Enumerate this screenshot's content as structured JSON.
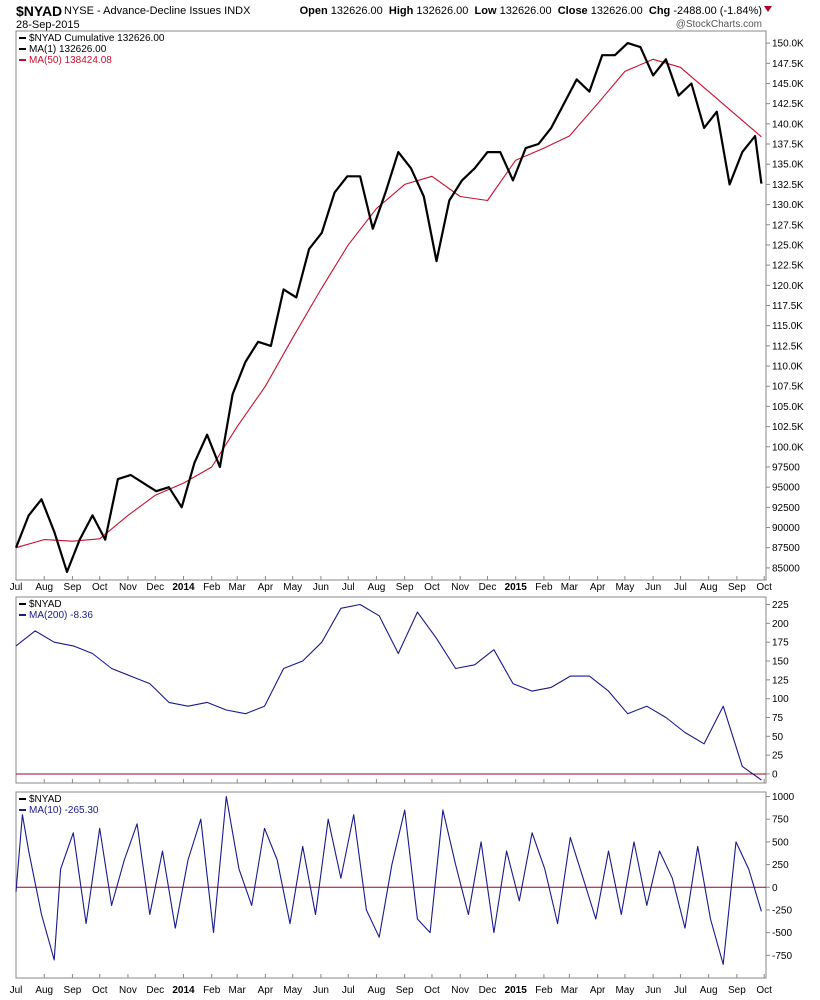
{
  "header": {
    "symbol": "$NYAD",
    "name": "NYSE - Advance-Decline Issues INDX",
    "date": "28-Sep-2015",
    "open_label": "Open",
    "open": "132626.00",
    "high_label": "High",
    "high": "132626.00",
    "low_label": "Low",
    "low": "132626.00",
    "close_label": "Close",
    "close": "132626.00",
    "chg_label": "Chg",
    "chg": "-2488.00 (-1.84%)",
    "brand": "@StockCharts.com",
    "chg_color": "#b0002a"
  },
  "chart_data": [
    {
      "type": "line",
      "panel": "main",
      "ylim": [
        83500,
        151500
      ],
      "yticks": [
        85000,
        87500,
        90000,
        92500,
        95000,
        97500,
        100000,
        102500,
        105000,
        107500,
        110000,
        112500,
        115000,
        117500,
        120000,
        122500,
        125000,
        127500,
        130000,
        132500,
        135000,
        137500,
        140000,
        142500,
        145000,
        147500,
        150000
      ],
      "ytick_labels": [
        "85000",
        "87500",
        "90000",
        "92500",
        "95000",
        "97500",
        "100.0K",
        "102.5K",
        "105.0K",
        "107.5K",
        "110.0K",
        "112.5K",
        "115.0K",
        "117.5K",
        "120.0K",
        "122.5K",
        "125.0K",
        "127.5K",
        "130.0K",
        "132.5K",
        "135.0K",
        "137.5K",
        "140.0K",
        "142.5K",
        "145.0K",
        "147.5K",
        "150.0K"
      ],
      "grid": false,
      "legend_position": "top-left",
      "legend": [
        {
          "label": "$NYAD Cumulative 132626.00",
          "color": "#000000"
        },
        {
          "label": "MA(1) 132626.00",
          "color": "#000000"
        },
        {
          "label": "MA(50) 138424.08",
          "color": "#c8102e"
        }
      ],
      "series": [
        {
          "name": "$NYAD Cumulative",
          "color": "#000000",
          "x": [
            "2013-07-01",
            "2013-07-15",
            "2013-07-29",
            "2013-08-12",
            "2013-08-26",
            "2013-09-09",
            "2013-09-23",
            "2013-10-07",
            "2013-10-21",
            "2013-11-04",
            "2013-11-18",
            "2013-12-02",
            "2013-12-16",
            "2013-12-30",
            "2014-01-13",
            "2014-01-27",
            "2014-02-10",
            "2014-02-24",
            "2014-03-10",
            "2014-03-24",
            "2014-04-07",
            "2014-04-21",
            "2014-05-05",
            "2014-05-19",
            "2014-06-02",
            "2014-06-16",
            "2014-06-30",
            "2014-07-14",
            "2014-07-28",
            "2014-08-11",
            "2014-08-25",
            "2014-09-08",
            "2014-09-22",
            "2014-10-06",
            "2014-10-20",
            "2014-11-03",
            "2014-11-17",
            "2014-12-01",
            "2014-12-15",
            "2014-12-29",
            "2015-01-12",
            "2015-01-26",
            "2015-02-09",
            "2015-02-23",
            "2015-03-09",
            "2015-03-23",
            "2015-04-06",
            "2015-04-20",
            "2015-05-04",
            "2015-05-18",
            "2015-06-01",
            "2015-06-15",
            "2015-06-29",
            "2015-07-13",
            "2015-07-27",
            "2015-08-10",
            "2015-08-24",
            "2015-09-07",
            "2015-09-21",
            "2015-09-28"
          ],
          "y": [
            87500,
            91500,
            93500,
            89500,
            84500,
            88500,
            91500,
            88500,
            96000,
            96500,
            95500,
            94500,
            95000,
            92500,
            98000,
            101500,
            97500,
            106500,
            110500,
            113000,
            112500,
            119500,
            118500,
            124500,
            126500,
            131500,
            133500,
            133500,
            127000,
            131500,
            136500,
            134500,
            131000,
            123000,
            130500,
            133000,
            134500,
            136500,
            136500,
            133000,
            137000,
            137500,
            139500,
            142500,
            145500,
            144000,
            148500,
            148500,
            150000,
            149500,
            146000,
            148000,
            143500,
            145000,
            139500,
            141500,
            132500,
            136500,
            138500,
            132600
          ]
        },
        {
          "name": "MA(50)",
          "color": "#c8102e",
          "x": [
            "2013-07-01",
            "2013-08-01",
            "2013-09-01",
            "2013-10-01",
            "2013-11-01",
            "2013-12-01",
            "2014-01-01",
            "2014-02-01",
            "2014-03-01",
            "2014-04-01",
            "2014-05-01",
            "2014-06-01",
            "2014-07-01",
            "2014-08-01",
            "2014-09-01",
            "2014-10-01",
            "2014-11-01",
            "2014-12-01",
            "2015-01-01",
            "2015-02-01",
            "2015-03-01",
            "2015-04-01",
            "2015-05-01",
            "2015-06-01",
            "2015-07-01",
            "2015-08-01",
            "2015-09-01",
            "2015-09-28"
          ],
          "y": [
            87500,
            88500,
            88300,
            88600,
            91500,
            94000,
            95500,
            97500,
            102500,
            107500,
            113500,
            119500,
            125000,
            129500,
            132500,
            133500,
            131000,
            130500,
            135500,
            137000,
            138500,
            142500,
            146500,
            148000,
            147000,
            144000,
            141000,
            138400
          ]
        }
      ],
      "x_ticks": [
        "Jul",
        "Aug",
        "Sep",
        "Oct",
        "Nov",
        "Dec",
        "2014",
        "Feb",
        "Mar",
        "Apr",
        "May",
        "Jun",
        "Jul",
        "Aug",
        "Sep",
        "Oct",
        "Nov",
        "Dec",
        "2015",
        "Feb",
        "Mar",
        "Apr",
        "May",
        "Jun",
        "Jul",
        "Aug",
        "Sep",
        "Oct"
      ],
      "x_tick_dates": [
        "2013-07-01",
        "2013-08-01",
        "2013-09-01",
        "2013-10-01",
        "2013-11-01",
        "2013-12-01",
        "2014-01-01",
        "2014-02-01",
        "2014-03-01",
        "2014-04-01",
        "2014-05-01",
        "2014-06-01",
        "2014-07-01",
        "2014-08-01",
        "2014-09-01",
        "2014-10-01",
        "2014-11-01",
        "2014-12-01",
        "2015-01-01",
        "2015-02-01",
        "2015-03-01",
        "2015-04-01",
        "2015-05-01",
        "2015-06-01",
        "2015-07-01",
        "2015-08-01",
        "2015-09-01",
        "2015-10-01"
      ]
    },
    {
      "type": "line",
      "panel": "ma200",
      "ylim": [
        -12,
        235
      ],
      "yticks": [
        0,
        25,
        50,
        75,
        100,
        125,
        150,
        175,
        200,
        225
      ],
      "ytick_labels": [
        "0",
        "25",
        "50",
        "75",
        "100",
        "125",
        "150",
        "175",
        "200",
        "225"
      ],
      "reference_line": 0,
      "reference_color": "#a0002a",
      "legend": [
        {
          "label": "$NYAD",
          "color": "#000000"
        },
        {
          "label": "MA(200) -8.36",
          "color": "#1a1a8c"
        }
      ],
      "series": [
        {
          "name": "MA(200)",
          "color": "#1a1a8c",
          "x": [
            "2013-07-01",
            "2013-07-22",
            "2013-08-12",
            "2013-09-02",
            "2013-09-23",
            "2013-10-14",
            "2013-11-04",
            "2013-11-25",
            "2013-12-16",
            "2014-01-06",
            "2014-01-27",
            "2014-02-17",
            "2014-03-10",
            "2014-03-31",
            "2014-04-21",
            "2014-05-12",
            "2014-06-02",
            "2014-06-23",
            "2014-07-14",
            "2014-08-04",
            "2014-08-25",
            "2014-09-15",
            "2014-10-06",
            "2014-10-27",
            "2014-11-17",
            "2014-12-08",
            "2014-12-29",
            "2015-01-19",
            "2015-02-09",
            "2015-03-02",
            "2015-03-23",
            "2015-04-13",
            "2015-05-04",
            "2015-05-25",
            "2015-06-15",
            "2015-07-06",
            "2015-07-27",
            "2015-08-17",
            "2015-09-07",
            "2015-09-28"
          ],
          "y": [
            170,
            190,
            175,
            170,
            160,
            140,
            130,
            120,
            95,
            90,
            95,
            85,
            80,
            90,
            140,
            150,
            175,
            220,
            225,
            210,
            160,
            215,
            180,
            140,
            145,
            165,
            120,
            110,
            115,
            130,
            130,
            110,
            80,
            90,
            75,
            55,
            40,
            90,
            10,
            -8
          ]
        }
      ],
      "x_ticks": [
        "Jul",
        "Aug",
        "Sep",
        "Oct",
        "Nov",
        "Dec",
        "2014",
        "Feb",
        "Mar",
        "Apr",
        "May",
        "Jun",
        "Jul",
        "Aug",
        "Sep",
        "Oct",
        "Nov",
        "Dec",
        "2015",
        "Feb",
        "Mar",
        "Apr",
        "May",
        "Jun",
        "Jul",
        "Aug",
        "Sep",
        "Oct"
      ]
    },
    {
      "type": "line",
      "panel": "ma10",
      "ylim": [
        -1000,
        1050
      ],
      "yticks": [
        -750,
        -500,
        -250,
        0,
        250,
        500,
        750,
        1000
      ],
      "ytick_labels": [
        "-750",
        "-500",
        "-250",
        "0",
        "250",
        "500",
        "750",
        "1000"
      ],
      "reference_line": 0,
      "reference_color": "#a0002a",
      "legend": [
        {
          "label": "$NYAD",
          "color": "#000000"
        },
        {
          "label": "MA(10) -265.30",
          "color": "#1a1a8c"
        }
      ],
      "series": [
        {
          "name": "MA(10)",
          "color": "#1a1a8c",
          "x": [
            "2013-07-01",
            "2013-07-08",
            "2013-07-15",
            "2013-07-29",
            "2013-08-12",
            "2013-08-19",
            "2013-09-02",
            "2013-09-16",
            "2013-10-01",
            "2013-10-14",
            "2013-10-28",
            "2013-11-11",
            "2013-11-25",
            "2013-12-09",
            "2013-12-23",
            "2014-01-06",
            "2014-01-20",
            "2014-02-03",
            "2014-02-17",
            "2014-03-03",
            "2014-03-17",
            "2014-03-31",
            "2014-04-14",
            "2014-04-28",
            "2014-05-12",
            "2014-05-26",
            "2014-06-09",
            "2014-06-23",
            "2014-07-07",
            "2014-07-21",
            "2014-08-04",
            "2014-08-18",
            "2014-09-01",
            "2014-09-15",
            "2014-09-29",
            "2014-10-13",
            "2014-10-27",
            "2014-11-10",
            "2014-11-24",
            "2014-12-08",
            "2014-12-22",
            "2015-01-05",
            "2015-01-19",
            "2015-02-02",
            "2015-02-16",
            "2015-03-02",
            "2015-03-16",
            "2015-03-30",
            "2015-04-13",
            "2015-04-27",
            "2015-05-11",
            "2015-05-25",
            "2015-06-08",
            "2015-06-22",
            "2015-07-06",
            "2015-07-20",
            "2015-08-03",
            "2015-08-17",
            "2015-08-31",
            "2015-09-14",
            "2015-09-28"
          ],
          "y": [
            -50,
            800,
            400,
            -300,
            -800,
            200,
            600,
            -400,
            650,
            -200,
            300,
            700,
            -300,
            400,
            -450,
            300,
            750,
            -500,
            1000,
            200,
            -200,
            650,
            300,
            -400,
            450,
            -300,
            750,
            100,
            800,
            -250,
            -550,
            250,
            850,
            -350,
            -500,
            850,
            250,
            -300,
            500,
            -500,
            400,
            -150,
            600,
            200,
            -400,
            550,
            100,
            -350,
            400,
            -300,
            500,
            -200,
            400,
            100,
            -450,
            450,
            -350,
            -850,
            500,
            200,
            -265
          ]
        }
      ],
      "x_ticks": [
        "Jul",
        "Aug",
        "Sep",
        "Oct",
        "Nov",
        "Dec",
        "2014",
        "Feb",
        "Mar",
        "Apr",
        "May",
        "Jun",
        "Jul",
        "Aug",
        "Sep",
        "Oct",
        "Nov",
        "Dec",
        "2015",
        "Feb",
        "Mar",
        "Apr",
        "May",
        "Jun",
        "Jul",
        "Aug",
        "Sep",
        "Oct"
      ]
    }
  ]
}
